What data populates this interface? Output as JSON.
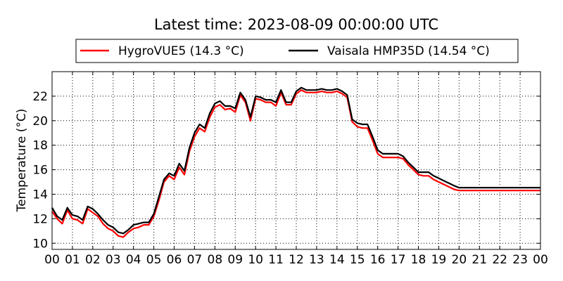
{
  "chart_data": {
    "type": "line",
    "title": "Latest time: 2023-08-09 00:00:00 UTC",
    "xlabel": "",
    "ylabel": "Temperature (°C)",
    "grid": true,
    "legend_position": "top",
    "xlim": [
      0,
      24
    ],
    "ylim": [
      9.5,
      24
    ],
    "x_ticks": [
      0,
      1,
      2,
      3,
      4,
      5,
      6,
      7,
      8,
      9,
      10,
      11,
      12,
      13,
      14,
      15,
      16,
      17,
      18,
      19,
      20,
      21,
      22,
      23,
      24
    ],
    "x_tick_labels": [
      "00",
      "01",
      "02",
      "03",
      "04",
      "05",
      "06",
      "07",
      "08",
      "09",
      "10",
      "11",
      "12",
      "13",
      "14",
      "15",
      "16",
      "17",
      "18",
      "19",
      "20",
      "21",
      "22",
      "23",
      "00"
    ],
    "y_ticks": [
      10,
      12,
      14,
      16,
      18,
      20,
      22
    ],
    "y_tick_labels": [
      "10",
      "12",
      "14",
      "16",
      "18",
      "20",
      "22"
    ],
    "x": [
      0.0,
      0.25,
      0.5,
      0.75,
      1.0,
      1.25,
      1.5,
      1.75,
      2.0,
      2.25,
      2.5,
      2.75,
      3.0,
      3.25,
      3.5,
      3.75,
      4.0,
      4.25,
      4.5,
      4.75,
      5.0,
      5.25,
      5.5,
      5.75,
      6.0,
      6.25,
      6.5,
      6.75,
      7.0,
      7.25,
      7.5,
      7.75,
      8.0,
      8.25,
      8.5,
      8.75,
      9.0,
      9.25,
      9.5,
      9.75,
      10.0,
      10.25,
      10.5,
      10.75,
      11.0,
      11.25,
      11.5,
      11.75,
      12.0,
      12.25,
      12.5,
      12.75,
      13.0,
      13.25,
      13.5,
      13.75,
      14.0,
      14.25,
      14.5,
      14.75,
      15.0,
      15.25,
      15.5,
      15.75,
      16.0,
      16.25,
      16.5,
      16.75,
      17.0,
      17.25,
      17.5,
      17.75,
      18.0,
      18.25,
      18.5,
      18.75,
      19.0,
      19.25,
      19.5,
      19.75,
      20.0,
      20.25,
      20.5,
      20.75,
      21.0,
      21.25,
      21.5,
      21.75,
      22.0,
      22.25,
      22.5,
      22.75,
      23.0,
      23.25,
      23.5,
      23.75,
      24.0
    ],
    "series": [
      {
        "name": "HygroVUE5 (14.3 °C)",
        "color": "#ff0000",
        "values": [
          12.6,
          12.0,
          11.6,
          12.7,
          12.0,
          11.9,
          11.6,
          12.8,
          12.5,
          12.2,
          11.6,
          11.2,
          11.0,
          10.6,
          10.5,
          10.9,
          11.2,
          11.3,
          11.5,
          11.5,
          12.2,
          13.5,
          15.0,
          15.5,
          15.2,
          16.2,
          15.6,
          17.5,
          18.7,
          19.4,
          19.1,
          20.3,
          21.1,
          21.3,
          20.9,
          21.0,
          20.7,
          22.1,
          21.5,
          20.0,
          21.8,
          21.7,
          21.5,
          21.5,
          21.2,
          22.3,
          21.3,
          21.3,
          22.2,
          22.5,
          22.3,
          22.3,
          22.3,
          22.4,
          22.3,
          22.3,
          22.4,
          22.2,
          21.9,
          19.9,
          19.5,
          19.4,
          19.4,
          18.4,
          17.3,
          17.0,
          17.0,
          17.0,
          17.0,
          16.9,
          16.4,
          16.0,
          15.6,
          15.5,
          15.5,
          15.2,
          15.0,
          14.8,
          14.6,
          14.4,
          14.3,
          14.3,
          14.3,
          14.3,
          14.3,
          14.3,
          14.3,
          14.3,
          14.3,
          14.3,
          14.3,
          14.3,
          14.3,
          14.3,
          14.3,
          14.3,
          14.3
        ]
      },
      {
        "name": "Vaisala HMP35D (14.54 °C)",
        "color": "#000000",
        "values": [
          12.9,
          12.2,
          11.9,
          12.9,
          12.3,
          12.2,
          11.9,
          13.0,
          12.8,
          12.4,
          11.9,
          11.5,
          11.3,
          10.9,
          10.8,
          11.1,
          11.5,
          11.6,
          11.7,
          11.7,
          12.4,
          13.8,
          15.2,
          15.7,
          15.5,
          16.5,
          15.9,
          17.8,
          19.0,
          19.7,
          19.4,
          20.6,
          21.4,
          21.6,
          21.2,
          21.2,
          21.0,
          22.3,
          21.7,
          20.3,
          22.0,
          21.9,
          21.7,
          21.7,
          21.5,
          22.5,
          21.5,
          21.5,
          22.4,
          22.7,
          22.5,
          22.5,
          22.5,
          22.6,
          22.5,
          22.5,
          22.6,
          22.4,
          22.1,
          20.1,
          19.8,
          19.7,
          19.7,
          18.7,
          17.6,
          17.3,
          17.3,
          17.3,
          17.3,
          17.1,
          16.6,
          16.2,
          15.8,
          15.8,
          15.8,
          15.5,
          15.3,
          15.1,
          14.9,
          14.7,
          14.54,
          14.54,
          14.54,
          14.54,
          14.54,
          14.54,
          14.54,
          14.54,
          14.54,
          14.54,
          14.54,
          14.54,
          14.54,
          14.54,
          14.54,
          14.54,
          14.54
        ]
      }
    ]
  }
}
